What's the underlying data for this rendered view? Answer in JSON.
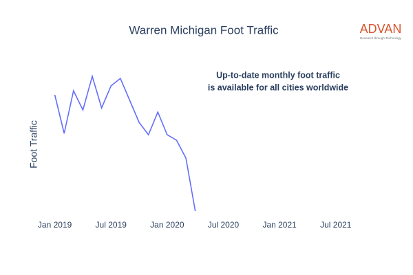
{
  "chart_data": {
    "type": "line",
    "title": "Warren Michigan Foot Traffic",
    "y_label": "Foot Traffic",
    "annotation": [
      "Up-to-date monthly foot traffic",
      "is available for all cities worldwide"
    ],
    "logo": {
      "name": "ADVAN",
      "tagline": "Research through Technology"
    },
    "x": [
      "2019-01",
      "2019-02",
      "2019-03",
      "2019-04",
      "2019-05",
      "2019-06",
      "2019-07",
      "2019-08",
      "2019-09",
      "2019-10",
      "2019-11",
      "2019-12",
      "2020-01",
      "2020-02",
      "2020-03",
      "2020-04"
    ],
    "series": [
      {
        "name": "Foot Traffic",
        "color": "#636efa",
        "values": [
          182,
          126,
          188,
          160,
          209,
          163,
          195,
          206,
          174,
          142,
          124,
          157,
          124,
          116,
          90,
          13
        ]
      }
    ],
    "xlim": [
      "2018-12",
      "2021-09"
    ],
    "xticks": [
      {
        "value": "2019-01",
        "label": "Jan 2019"
      },
      {
        "value": "2019-07",
        "label": "Jul 2019"
      },
      {
        "value": "2020-01",
        "label": "Jan 2020"
      },
      {
        "value": "2020-07",
        "label": "Jul 2020"
      },
      {
        "value": "2021-01",
        "label": "Jan 2021"
      },
      {
        "value": "2021-07",
        "label": "Jul 2021"
      }
    ],
    "ylim": [
      0,
      220
    ]
  }
}
